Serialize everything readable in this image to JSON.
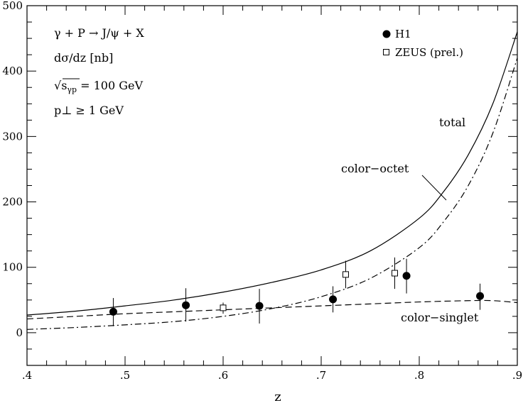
{
  "chart_data": {
    "type": "line",
    "xlabel": "z",
    "ylabel": "",
    "xlim": [
      0.4,
      0.9
    ],
    "ylim": [
      -50,
      500
    ],
    "x_ticks": [
      0.4,
      0.5,
      0.6,
      0.7,
      0.8,
      0.9
    ],
    "x_tick_labels": [
      ".4",
      ".5",
      ".6",
      ".7",
      ".8",
      ".9"
    ],
    "y_ticks": [
      0,
      100,
      200,
      300,
      400,
      500
    ],
    "y_tick_labels": [
      "0",
      "100",
      "200",
      "300",
      "400",
      "500"
    ],
    "grid": false,
    "annotations": {
      "process": "γ + P → J/ψ + X",
      "observable": "dσ/dz [nb]",
      "energy_prefix": "√s",
      "energy_sub": "γp",
      "energy_value": " = 100 GeV",
      "pt_cut": "p⊥ ≥ 1 GeV"
    },
    "curve_labels": {
      "total": "total",
      "octet": "color−octet",
      "singlet": "color−singlet"
    },
    "series": [
      {
        "key": "total",
        "style": "solid",
        "x": [
          0.4,
          0.45,
          0.5,
          0.55,
          0.6,
          0.65,
          0.7,
          0.75,
          0.8,
          0.825,
          0.85,
          0.875,
          0.9
        ],
        "y": [
          27,
          33,
          41,
          50,
          62,
          77,
          96,
          125,
          175,
          216,
          272,
          350,
          460
        ]
      },
      {
        "key": "octet",
        "style": "dashdot",
        "x": [
          0.4,
          0.45,
          0.5,
          0.55,
          0.6,
          0.65,
          0.7,
          0.75,
          0.8,
          0.825,
          0.85,
          0.875,
          0.9
        ],
        "y": [
          5,
          8,
          12,
          17,
          25,
          37,
          55,
          83,
          130,
          170,
          225,
          305,
          420
        ]
      },
      {
        "key": "singlet",
        "style": "dashed",
        "x": [
          0.4,
          0.45,
          0.5,
          0.55,
          0.6,
          0.65,
          0.7,
          0.75,
          0.8,
          0.85,
          0.875,
          0.9
        ],
        "y": [
          21,
          25,
          29,
          32,
          35,
          38,
          41,
          44,
          47,
          49,
          49,
          46
        ]
      }
    ],
    "datasets": [
      {
        "name": "H1",
        "marker": "filled-circle",
        "points": [
          {
            "x": 0.488,
            "y": 32,
            "lo": 10,
            "hi": 53
          },
          {
            "x": 0.562,
            "y": 42,
            "lo": 17,
            "hi": 68
          },
          {
            "x": 0.637,
            "y": 41,
            "lo": 14,
            "hi": 67
          },
          {
            "x": 0.712,
            "y": 51,
            "lo": 31,
            "hi": 71
          },
          {
            "x": 0.787,
            "y": 87,
            "lo": 60,
            "hi": 113
          },
          {
            "x": 0.862,
            "y": 56,
            "lo": 35,
            "hi": 75
          }
        ]
      },
      {
        "name": "ZEUS (prel.)",
        "marker": "open-square",
        "points": [
          {
            "x": 0.6,
            "y": 38,
            "lo": 29,
            "hi": 46
          },
          {
            "x": 0.725,
            "y": 89,
            "lo": 68,
            "hi": 110
          },
          {
            "x": 0.775,
            "y": 91,
            "lo": 67,
            "hi": 115
          }
        ]
      }
    ]
  }
}
